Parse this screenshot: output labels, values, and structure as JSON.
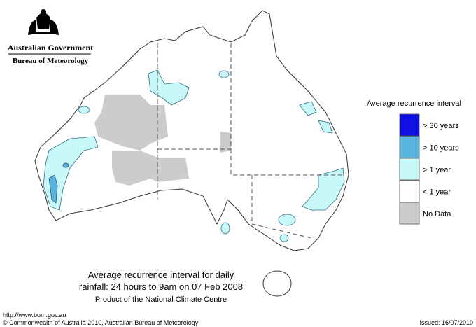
{
  "header": {
    "government": "Australian Government",
    "bureau": "Bureau of Meteorology"
  },
  "legend": {
    "title": "Average recurrence interval",
    "items": [
      {
        "label": "> 30 years",
        "color": "#1010e0"
      },
      {
        "label": "> 10 years",
        "color": "#58b4dc"
      },
      {
        "label": "> 1 year",
        "color": "#c8f8f8"
      },
      {
        "label": "< 1 year",
        "color": "#ffffff"
      },
      {
        "label": "No Data",
        "color": "#cccccc"
      }
    ]
  },
  "caption": {
    "line1": "Average recurrence interval for daily",
    "line2": "rainfall: 24 hours to 9am on 07 Feb 2008",
    "line3": "Product of the National Climate Centre"
  },
  "footer": {
    "url": "http://www.bom.gov.au",
    "copyright": "© Commonwealth of Australia 2010, Australian Bureau of Meteorology",
    "issued": "Issued: 16/07/2010"
  }
}
